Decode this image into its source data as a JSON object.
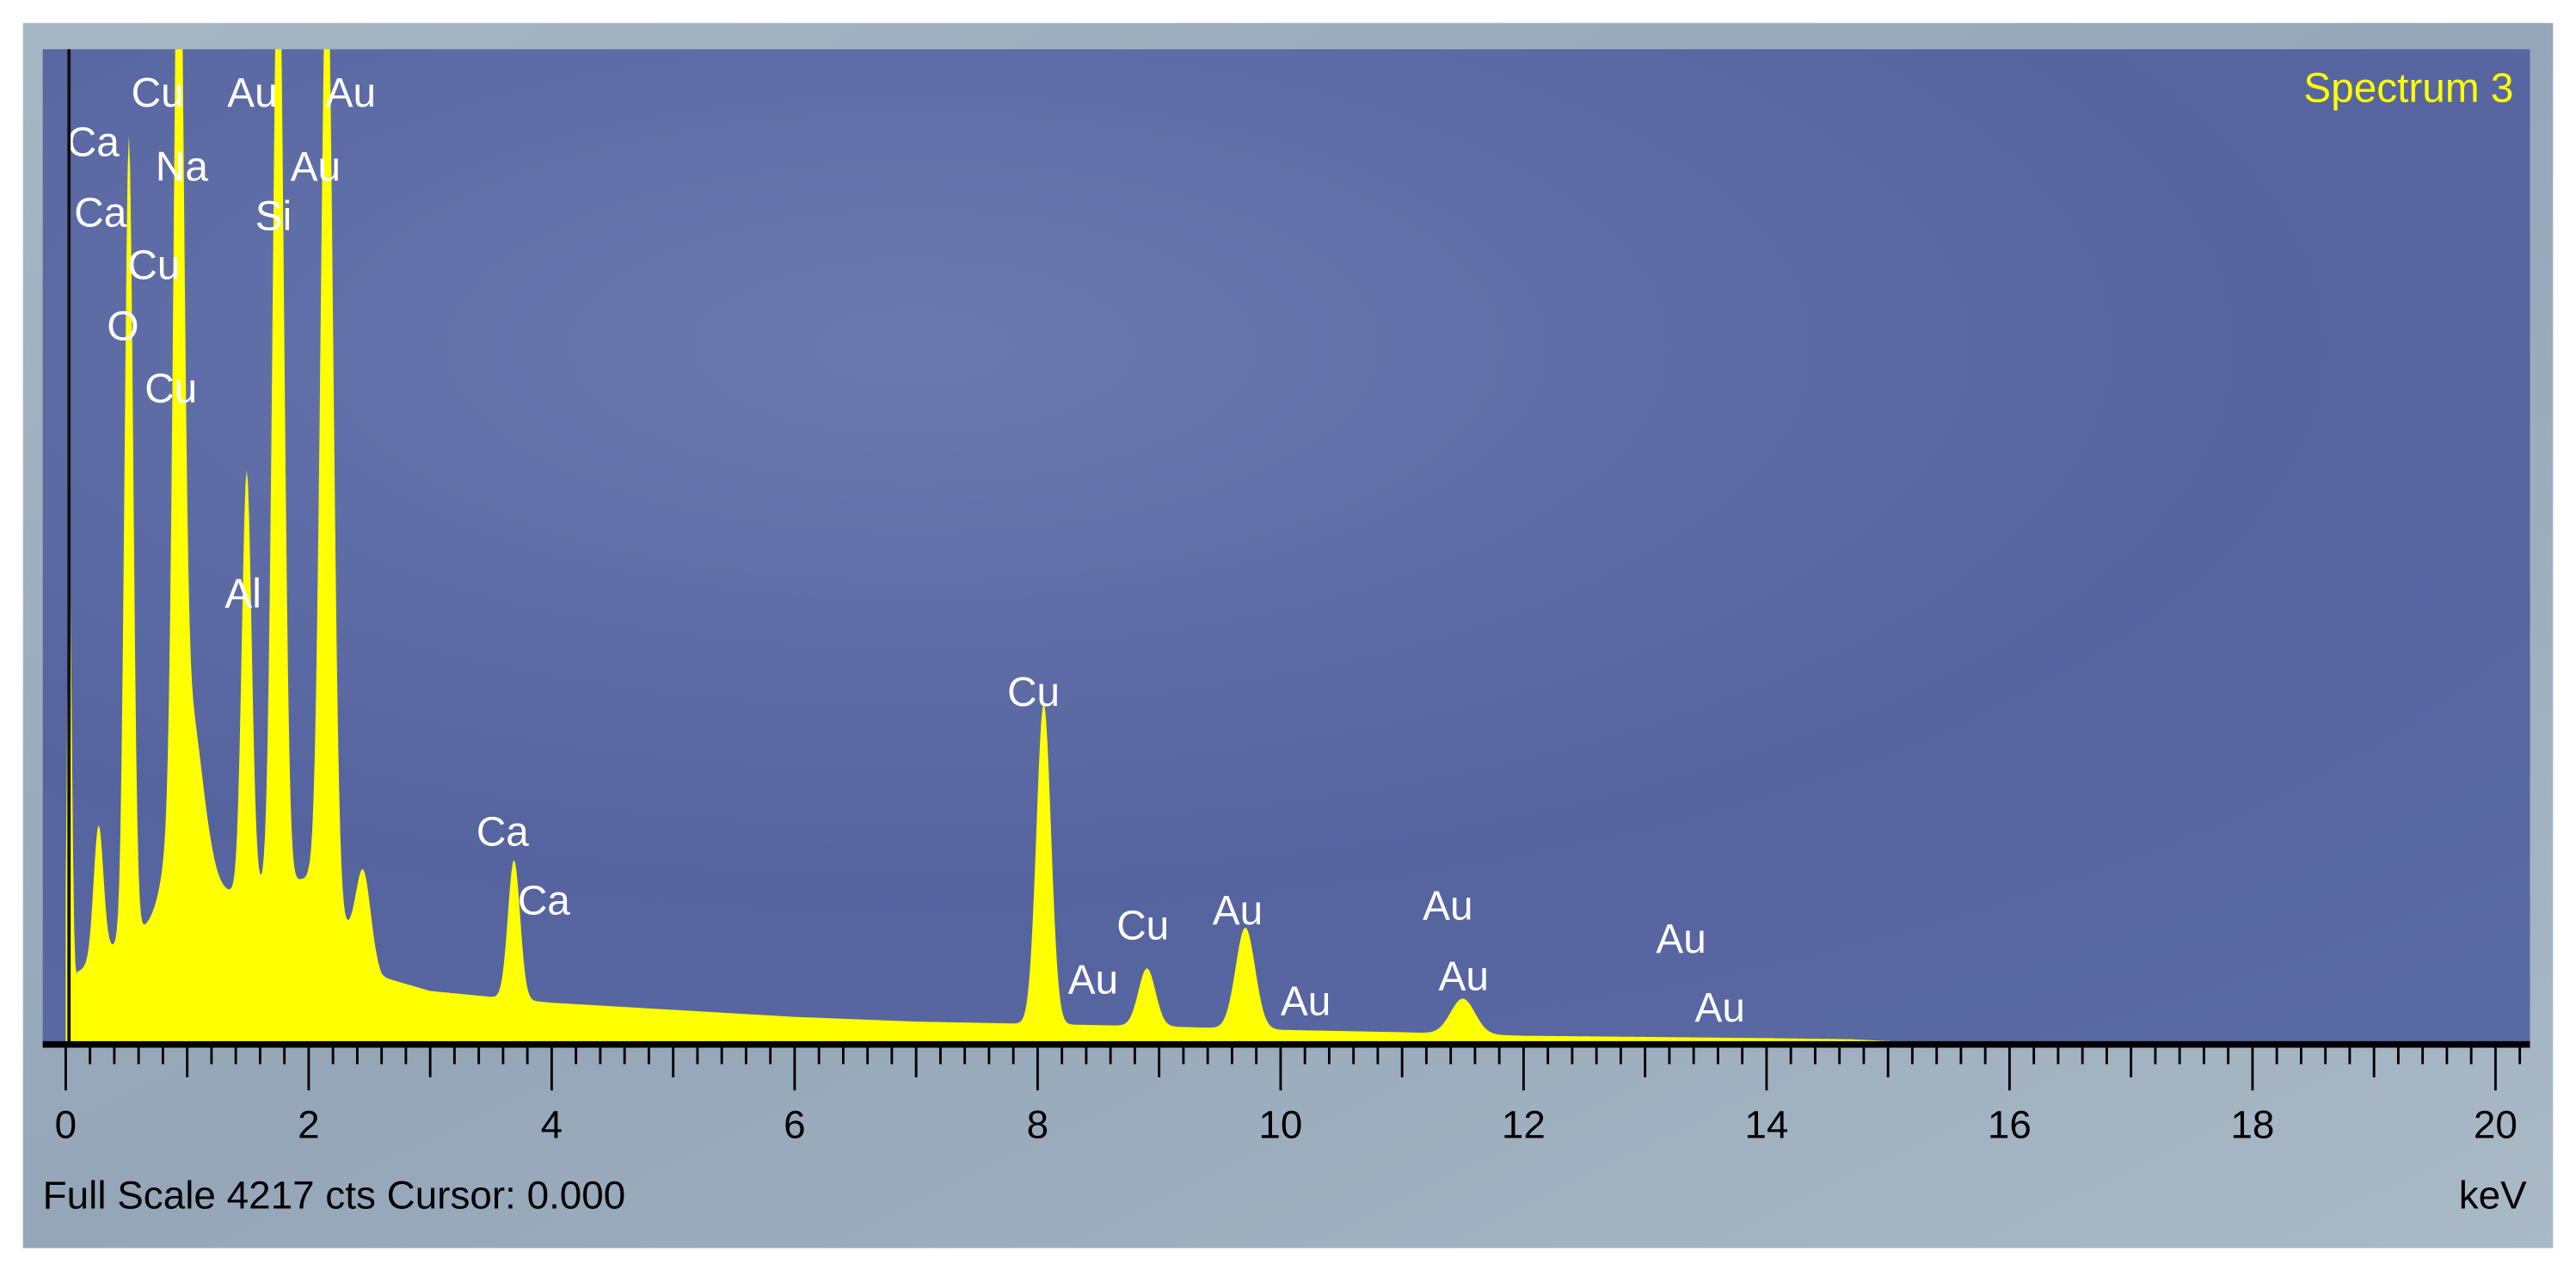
{
  "chart_data": {
    "type": "area",
    "title": "Spectrum 3",
    "xlabel": "keV",
    "ylabel": "",
    "xlim": [
      0,
      20.3
    ],
    "ylim": [
      0,
      4217
    ],
    "x_ticks": [
      "0",
      "2",
      "4",
      "6",
      "8",
      "10",
      "12",
      "14",
      "16",
      "18",
      "20"
    ],
    "grid": false,
    "footer": {
      "full_scale": "Full Scale 4217 cts Cursor: 0.000",
      "unit": "keV"
    },
    "cursor_keV": 0.0,
    "colors": {
      "spectrum": "#ffff00",
      "background": "#5a69a3",
      "frame": "#9fb0c0",
      "title": "#ffff00",
      "labels": "#ffffff"
    },
    "peaks": [
      {
        "energy": 0.03,
        "counts": 1990,
        "width": 0.02
      },
      {
        "energy": 0.27,
        "counts": 560,
        "width": 0.04
      },
      {
        "energy": 0.52,
        "counts": 3395,
        "width": 0.035
      },
      {
        "energy": 0.93,
        "counts": 3925,
        "width": 0.04
      },
      {
        "energy": 1.0,
        "counts": 900,
        "width": 0.12
      },
      {
        "energy": 1.49,
        "counts": 1780,
        "width": 0.04
      },
      {
        "energy": 1.75,
        "counts": 4217,
        "width": 0.045
      },
      {
        "energy": 2.15,
        "counts": 4130,
        "width": 0.05
      },
      {
        "energy": 2.45,
        "counts": 350,
        "width": 0.06
      },
      {
        "energy": 3.69,
        "counts": 590,
        "width": 0.05
      },
      {
        "energy": 8.05,
        "counts": 1360,
        "width": 0.06
      },
      {
        "energy": 8.9,
        "counts": 245,
        "width": 0.07
      },
      {
        "energy": 9.71,
        "counts": 430,
        "width": 0.08
      },
      {
        "energy": 11.5,
        "counts": 150,
        "width": 0.1
      }
    ],
    "continuum": [
      [
        0.1,
        300
      ],
      [
        0.5,
        450
      ],
      [
        1.2,
        620
      ],
      [
        2.0,
        700
      ],
      [
        2.6,
        280
      ],
      [
        3.0,
        220
      ],
      [
        4.0,
        170
      ],
      [
        5.0,
        140
      ],
      [
        6.0,
        110
      ],
      [
        7.0,
        90
      ],
      [
        8.0,
        80
      ],
      [
        9.0,
        70
      ],
      [
        10.0,
        55
      ],
      [
        11.0,
        45
      ],
      [
        12.0,
        30
      ],
      [
        13.0,
        25
      ],
      [
        14.0,
        20
      ],
      [
        14.7,
        15
      ],
      [
        15.1,
        5
      ],
      [
        15.2,
        0
      ]
    ],
    "peak_labels": [
      {
        "text": "Ca",
        "energy": 0.01,
        "counts": 3764
      },
      {
        "text": "Ca",
        "energy": 0.07,
        "counts": 3464
      },
      {
        "text": "Cu",
        "energy": 0.54,
        "counts": 3973
      },
      {
        "text": "Na",
        "energy": 0.74,
        "counts": 3659
      },
      {
        "text": "Au",
        "energy": 1.33,
        "counts": 3973
      },
      {
        "text": "Au",
        "energy": 2.14,
        "counts": 3973
      },
      {
        "text": "Au",
        "energy": 1.85,
        "counts": 3659
      },
      {
        "text": "Si",
        "energy": 1.56,
        "counts": 3450
      },
      {
        "text": "Cu",
        "energy": 0.51,
        "counts": 3241
      },
      {
        "text": "O",
        "energy": 0.34,
        "counts": 2983
      },
      {
        "text": "Cu",
        "energy": 0.65,
        "counts": 2718
      },
      {
        "text": "Al",
        "energy": 1.31,
        "counts": 1847
      },
      {
        "text": "Ca",
        "energy": 3.38,
        "counts": 836
      },
      {
        "text": "Ca",
        "energy": 3.72,
        "counts": 544
      },
      {
        "text": "Cu",
        "energy": 7.75,
        "counts": 1429
      },
      {
        "text": "Au",
        "energy": 8.25,
        "counts": 209
      },
      {
        "text": "Cu",
        "energy": 8.65,
        "counts": 439
      },
      {
        "text": "Au",
        "energy": 9.44,
        "counts": 502
      },
      {
        "text": "Au",
        "energy": 10.0,
        "counts": 118
      },
      {
        "text": "Au",
        "energy": 11.17,
        "counts": 523
      },
      {
        "text": "Au",
        "energy": 11.3,
        "counts": 223
      },
      {
        "text": "Au",
        "energy": 13.09,
        "counts": 383
      },
      {
        "text": "Au",
        "energy": 13.41,
        "counts": 91
      }
    ]
  }
}
